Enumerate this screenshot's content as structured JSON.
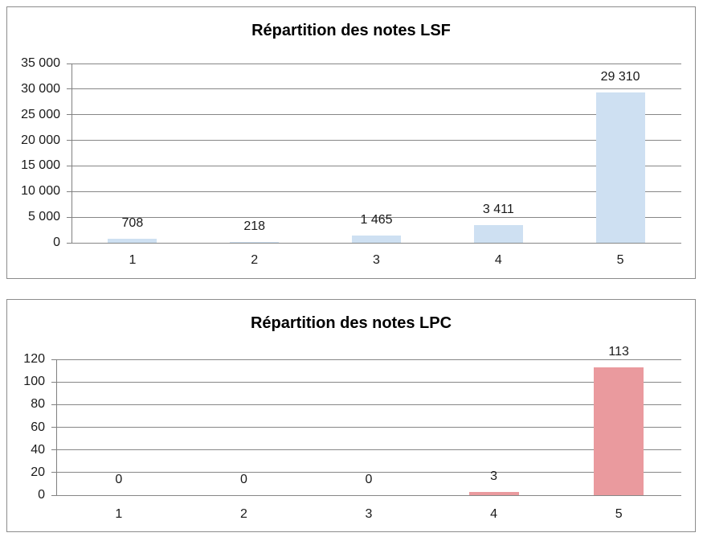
{
  "chart_data": [
    {
      "type": "bar",
      "title": "Répartition des notes LSF",
      "categories": [
        "1",
        "2",
        "3",
        "4",
        "5"
      ],
      "values": [
        708,
        218,
        1465,
        3411,
        29310
      ],
      "data_labels": [
        "708",
        "218",
        "1 465",
        "3 411",
        "29 310"
      ],
      "y_tick_labels": [
        "0",
        "5 000",
        "10 000",
        "15 000",
        "20 000",
        "25 000",
        "30 000",
        "35 000"
      ],
      "ylim": [
        0,
        35000
      ],
      "grid": true,
      "legend": "none",
      "bar_color": "#CEE0F2"
    },
    {
      "type": "bar",
      "title": "Répartition des notes LPC",
      "categories": [
        "1",
        "2",
        "3",
        "4",
        "5"
      ],
      "values": [
        0,
        0,
        0,
        3,
        113
      ],
      "data_labels": [
        "0",
        "0",
        "0",
        "3",
        "113"
      ],
      "y_tick_labels": [
        "0",
        "20",
        "40",
        "60",
        "80",
        "100",
        "120"
      ],
      "ylim": [
        0,
        120
      ],
      "grid": true,
      "legend": "none",
      "bar_color": "#EA9A9E"
    }
  ],
  "colors": {
    "gridline": "#878787",
    "axis": "#808080",
    "panel_border": "#8C8C8C",
    "text": "#1a1a1a",
    "background": "#FFFFFF"
  }
}
